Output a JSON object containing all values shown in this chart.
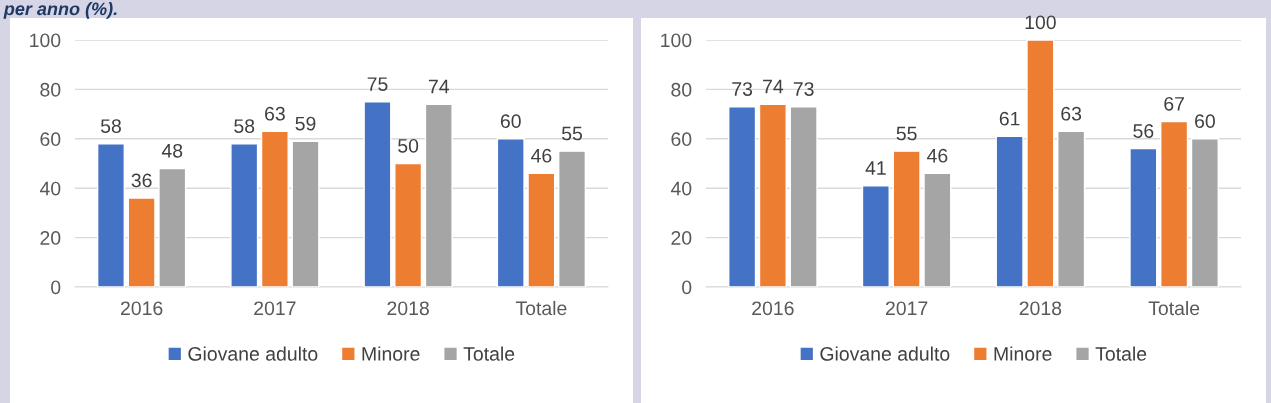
{
  "chart_data": [
    {
      "type": "bar",
      "title": "per anno (%).",
      "categories": [
        "2016",
        "2017",
        "2018",
        "Totale"
      ],
      "series": [
        {
          "name": "Giovane adulto",
          "color": "#4472c4",
          "values": [
            58,
            58,
            75,
            60
          ]
        },
        {
          "name": "Minore",
          "color": "#ed7d31",
          "values": [
            36,
            63,
            50,
            46
          ]
        },
        {
          "name": "Totale",
          "color": "#a5a5a5",
          "values": [
            48,
            59,
            74,
            55
          ]
        }
      ],
      "ylim": [
        0,
        100
      ],
      "yticks": [
        0,
        20,
        40,
        60,
        80,
        100
      ],
      "grid": "y",
      "legend": "bottom",
      "data_labels": true
    },
    {
      "type": "bar",
      "categories": [
        "2016",
        "2017",
        "2018",
        "Totale"
      ],
      "series": [
        {
          "name": "Giovane adulto",
          "color": "#4472c4",
          "values": [
            73,
            41,
            61,
            56
          ]
        },
        {
          "name": "Minore",
          "color": "#ed7d31",
          "values": [
            74,
            55,
            100,
            67
          ]
        },
        {
          "name": "Totale",
          "color": "#a5a5a5",
          "values": [
            73,
            46,
            63,
            60
          ]
        }
      ],
      "ylim": [
        0,
        100
      ],
      "yticks": [
        0,
        20,
        40,
        60,
        80,
        100
      ],
      "grid": "y",
      "legend": "bottom",
      "data_labels": true
    }
  ]
}
